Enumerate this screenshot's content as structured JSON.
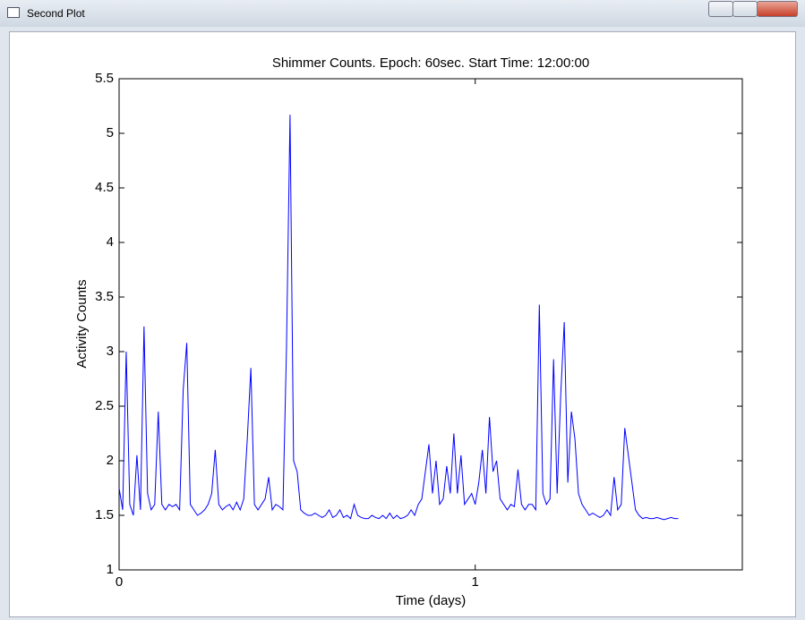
{
  "window": {
    "title": "Second Plot"
  },
  "chart_data": {
    "type": "line",
    "title": "Shimmer Counts. Epoch: 60sec. Start Time: 12:00:00",
    "x_label": "Time (days)",
    "y_label": "Activity Counts",
    "x": [
      0,
      0.01,
      0.02,
      0.03,
      0.04,
      0.05,
      0.06,
      0.07,
      0.08,
      0.09,
      0.1,
      0.11,
      0.12,
      0.13,
      0.14,
      0.15,
      0.16,
      0.17,
      0.18,
      0.19,
      0.2,
      0.21,
      0.22,
      0.23,
      0.24,
      0.25,
      0.26,
      0.27,
      0.28,
      0.29,
      0.3,
      0.31,
      0.32,
      0.33,
      0.34,
      0.35,
      0.36,
      0.37,
      0.38,
      0.39,
      0.4,
      0.41,
      0.42,
      0.43,
      0.44,
      0.45,
      0.46,
      0.47,
      0.48,
      0.49,
      0.5,
      0.51,
      0.52,
      0.53,
      0.54,
      0.55,
      0.56,
      0.57,
      0.58,
      0.59,
      0.6,
      0.61,
      0.62,
      0.63,
      0.64,
      0.65,
      0.66,
      0.67,
      0.68,
      0.69,
      0.7,
      0.71,
      0.72,
      0.73,
      0.74,
      0.75,
      0.76,
      0.77,
      0.78,
      0.79,
      0.8,
      0.81,
      0.82,
      0.83,
      0.84,
      0.85,
      0.86,
      0.87,
      0.88,
      0.89,
      0.9,
      0.91,
      0.92,
      0.93,
      0.94,
      0.95,
      0.96,
      0.97,
      0.98,
      0.99,
      1,
      1.01,
      1.02,
      1.03,
      1.04,
      1.05,
      1.06,
      1.07,
      1.08,
      1.09,
      1.1,
      1.11,
      1.12,
      1.13,
      1.14,
      1.15,
      1.16,
      1.17,
      1.18,
      1.19,
      1.2,
      1.21,
      1.22,
      1.23,
      1.24,
      1.25,
      1.26,
      1.27,
      1.28,
      1.29,
      1.3,
      1.31,
      1.32,
      1.33,
      1.34,
      1.35,
      1.36,
      1.37,
      1.38,
      1.39,
      1.4,
      1.41,
      1.42,
      1.43,
      1.44,
      1.45,
      1.46,
      1.47,
      1.48,
      1.49,
      1.5,
      1.51,
      1.52,
      1.53,
      1.54,
      1.55,
      1.56,
      1.57
    ],
    "series": [
      {
        "color": "#0000ff",
        "values": [
          1.75,
          1.55,
          3.0,
          1.6,
          1.5,
          2.05,
          1.55,
          3.23,
          1.7,
          1.55,
          1.6,
          2.45,
          1.6,
          1.55,
          1.6,
          1.58,
          1.6,
          1.55,
          2.65,
          3.08,
          1.6,
          1.55,
          1.5,
          1.52,
          1.55,
          1.6,
          1.7,
          2.1,
          1.6,
          1.55,
          1.58,
          1.6,
          1.55,
          1.62,
          1.55,
          1.65,
          2.2,
          2.85,
          1.6,
          1.55,
          1.6,
          1.65,
          1.85,
          1.55,
          1.6,
          1.58,
          1.55,
          3.03,
          5.17,
          2.0,
          1.9,
          1.55,
          1.52,
          1.5,
          1.5,
          1.52,
          1.5,
          1.48,
          1.5,
          1.55,
          1.48,
          1.5,
          1.55,
          1.48,
          1.5,
          1.47,
          1.6,
          1.5,
          1.48,
          1.47,
          1.47,
          1.5,
          1.48,
          1.47,
          1.5,
          1.47,
          1.52,
          1.47,
          1.5,
          1.47,
          1.48,
          1.5,
          1.55,
          1.5,
          1.6,
          1.65,
          1.9,
          2.15,
          1.7,
          2.0,
          1.6,
          1.65,
          1.95,
          1.7,
          2.25,
          1.7,
          2.05,
          1.6,
          1.65,
          1.7,
          1.6,
          1.8,
          2.1,
          1.7,
          2.4,
          1.9,
          2.0,
          1.65,
          1.6,
          1.55,
          1.6,
          1.58,
          1.92,
          1.6,
          1.55,
          1.6,
          1.6,
          1.55,
          3.43,
          1.7,
          1.6,
          1.65,
          2.93,
          1.7,
          2.6,
          3.27,
          1.8,
          2.45,
          2.2,
          1.7,
          1.6,
          1.55,
          1.5,
          1.52,
          1.5,
          1.48,
          1.5,
          1.55,
          1.5,
          1.85,
          1.55,
          1.6,
          2.3,
          2.05,
          1.8,
          1.55,
          1.5,
          1.47,
          1.48,
          1.47,
          1.47,
          1.48,
          1.47,
          1.46,
          1.47,
          1.48,
          1.47,
          1.47
        ]
      }
    ],
    "xlim": [
      0,
      1.75
    ],
    "xticks": [
      0,
      1
    ],
    "ylim": [
      1,
      5.5
    ],
    "yticks": [
      1,
      1.5,
      2,
      2.5,
      3,
      3.5,
      4,
      4.5,
      5,
      5.5
    ]
  }
}
